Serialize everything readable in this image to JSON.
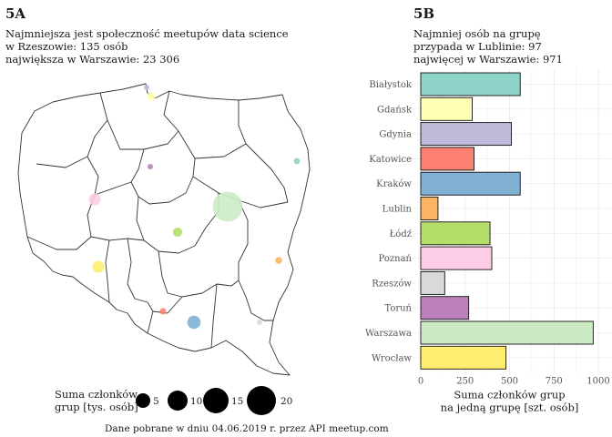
{
  "panel_a": {
    "label": "5A",
    "subtitle": "Najmniejsza jest społeczność meetupów data science\nw Rzeszowie: 135 osób\nnajwiększa w Warszawie: 23 306",
    "legend_title": "Suma członków\ngrup [tys. osób]",
    "legend_values": [
      "5",
      "10",
      "15",
      "20"
    ],
    "source": "Dane pobrane w dniu 04.06.2019 r. przez API meetup.com"
  },
  "panel_b": {
    "label": "5B",
    "subtitle": "Najmniej osób na grupę\nprzypada w Lublinie: 97\nnajwięcej w Warszawie: 971"
  },
  "chart_data": [
    {
      "type": "bubble-map",
      "size_unit": "tys. osób",
      "cities": [
        {
          "name": "Białystok",
          "color": "#8DD3C7",
          "members": 1.0
        },
        {
          "name": "Gdańsk",
          "color": "#FFFFB3",
          "members": 2.0
        },
        {
          "name": "Gdynia",
          "color": "#BEBADA",
          "members": 0.5
        },
        {
          "name": "Katowice",
          "color": "#FB8072",
          "members": 1.1
        },
        {
          "name": "Kraków",
          "color": "#80B1D3",
          "members": 4.6
        },
        {
          "name": "Lublin",
          "color": "#FDB462",
          "members": 1.2
        },
        {
          "name": "Łódź",
          "color": "#B3DE69",
          "members": 2.2
        },
        {
          "name": "Poznań",
          "color": "#FCCDE5",
          "members": 3.7
        },
        {
          "name": "Rzeszów",
          "color": "#D9D9D9",
          "members": 0.135
        },
        {
          "name": "Toruń",
          "color": "#BC80BD",
          "members": 0.7
        },
        {
          "name": "Warszawa",
          "color": "#CCEBC5",
          "members": 23.306
        },
        {
          "name": "Wrocław",
          "color": "#FFED6F",
          "members": 3.7
        }
      ]
    },
    {
      "type": "bar",
      "orientation": "horizontal",
      "categories": [
        "Białystok",
        "Gdańsk",
        "Gdynia",
        "Katowice",
        "Kraków",
        "Lublin",
        "Łódź",
        "Poznań",
        "Rzeszów",
        "Toruń",
        "Warszawa",
        "Wrocław"
      ],
      "values": [
        560,
        290,
        510,
        300,
        560,
        97,
        390,
        400,
        135,
        270,
        971,
        480
      ],
      "colors": [
        "#8DD3C7",
        "#FFFFB3",
        "#BEBADA",
        "#FB8072",
        "#80B1D3",
        "#FDB462",
        "#B3DE69",
        "#FCCDE5",
        "#D9D9D9",
        "#BC80BD",
        "#CCEBC5",
        "#FFED6F"
      ],
      "xlabel": "Suma członków grup\nna jedną grupę [szt. osób]",
      "xlim": [
        0,
        1000
      ],
      "xticks": [
        0,
        250,
        500,
        750,
        1000
      ],
      "xtick_labels": [
        "0",
        "250",
        "500",
        "750",
        "1000"
      ],
      "grid": true
    }
  ]
}
